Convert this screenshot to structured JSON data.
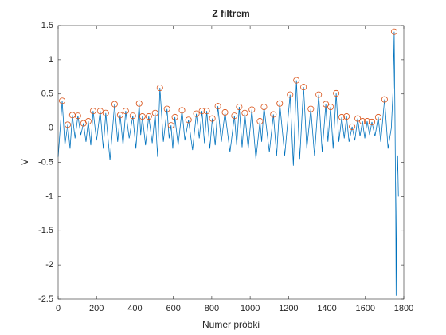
{
  "chart_data": {
    "type": "line",
    "title": "Z filtrem",
    "xlabel": "Numer próbki",
    "ylabel": "V",
    "x": [
      0,
      21,
      35,
      50,
      62,
      74,
      88,
      103,
      118,
      132,
      145,
      157,
      170,
      182,
      200,
      219,
      235,
      248,
      270,
      294,
      310,
      323,
      338,
      352,
      370,
      389,
      405,
      422,
      430,
      439,
      455,
      472,
      490,
      505,
      518,
      530,
      548,
      567,
      578,
      588,
      597,
      608,
      625,
      645,
      660,
      679,
      700,
      720,
      735,
      749,
      762,
      774,
      790,
      803,
      818,
      832,
      850,
      869,
      895,
      918,
      930,
      943,
      958,
      972,
      990,
      1009,
      1030,
      1051,
      1060,
      1072,
      1100,
      1121,
      1138,
      1154,
      1180,
      1208,
      1225,
      1241,
      1258,
      1278,
      1295,
      1316,
      1335,
      1357,
      1375,
      1394,
      1405,
      1419,
      1432,
      1448,
      1462,
      1477,
      1490,
      1502,
      1515,
      1531,
      1545,
      1560,
      1572,
      1585,
      1597,
      1609,
      1622,
      1634,
      1650,
      1667,
      1680,
      1700,
      1718,
      1735,
      1745,
      1750,
      1754,
      1758,
      1760,
      1764,
      1768,
      1772
    ],
    "values": [
      -0.42,
      0.4,
      -0.25,
      0.05,
      -0.3,
      0.19,
      -0.15,
      0.18,
      -0.1,
      0.07,
      -0.2,
      0.1,
      -0.25,
      0.25,
      -0.18,
      0.25,
      -0.3,
      0.22,
      -0.47,
      0.35,
      -0.2,
      0.19,
      -0.25,
      0.25,
      -0.15,
      0.18,
      -0.3,
      0.36,
      -0.1,
      0.17,
      -0.25,
      0.17,
      -0.22,
      0.22,
      -0.42,
      0.59,
      -0.2,
      0.28,
      -0.15,
      0.04,
      -0.3,
      0.16,
      -0.25,
      0.26,
      -0.18,
      0.12,
      -0.32,
      0.21,
      -0.15,
      0.25,
      -0.22,
      0.25,
      -0.3,
      0.14,
      -0.25,
      0.32,
      -0.2,
      0.23,
      -0.35,
      0.18,
      -0.25,
      0.31,
      -0.28,
      0.22,
      -0.3,
      0.27,
      -0.45,
      0.1,
      -0.2,
      0.31,
      -0.35,
      0.2,
      -0.4,
      0.36,
      -0.4,
      0.49,
      -0.55,
      0.7,
      -0.45,
      0.6,
      -0.3,
      0.28,
      -0.4,
      0.49,
      -0.35,
      0.35,
      -0.2,
      0.31,
      -0.3,
      0.51,
      -0.2,
      0.16,
      -0.15,
      0.17,
      -0.2,
      0.02,
      -0.18,
      0.14,
      -0.12,
      0.1,
      -0.15,
      0.1,
      -0.1,
      0.09,
      -0.12,
      0.16,
      -0.2,
      0.42,
      -0.3,
      0.0,
      0.6,
      1.41,
      0.2,
      -1.2,
      -2.45,
      -0.8,
      -0.4,
      -1.0
    ],
    "color": "#0072bd",
    "markers": {
      "color": "#d95319",
      "x": [
        21,
        50,
        74,
        103,
        132,
        157,
        182,
        219,
        248,
        294,
        323,
        352,
        389,
        422,
        439,
        472,
        505,
        530,
        567,
        588,
        608,
        645,
        679,
        720,
        749,
        774,
        803,
        832,
        869,
        918,
        943,
        972,
        1009,
        1051,
        1072,
        1121,
        1154,
        1208,
        1241,
        1278,
        1316,
        1357,
        1394,
        1419,
        1448,
        1477,
        1502,
        1531,
        1560,
        1585,
        1609,
        1634,
        1667,
        1700,
        1750
      ],
      "values": [
        0.4,
        0.05,
        0.19,
        0.18,
        0.07,
        0.1,
        0.25,
        0.25,
        0.22,
        0.35,
        0.19,
        0.25,
        0.18,
        0.36,
        0.17,
        0.17,
        0.22,
        0.59,
        0.28,
        0.04,
        0.16,
        0.26,
        0.12,
        0.21,
        0.25,
        0.25,
        0.14,
        0.32,
        0.23,
        0.18,
        0.31,
        0.22,
        0.27,
        0.1,
        0.31,
        0.2,
        0.36,
        0.49,
        0.7,
        0.6,
        0.28,
        0.49,
        0.35,
        0.31,
        0.51,
        0.16,
        0.17,
        0.02,
        0.14,
        0.1,
        0.1,
        0.09,
        0.16,
        0.42,
        1.41
      ]
    },
    "xlim": [
      0,
      1800
    ],
    "xticks": [
      0,
      200,
      400,
      600,
      800,
      1000,
      1200,
      1400,
      1600,
      1800
    ],
    "ylim": [
      -2.5,
      1.5
    ],
    "yticks": [
      -2.5,
      -2,
      -1.5,
      -1,
      -0.5,
      0,
      0.5,
      1,
      1.5
    ],
    "grid": false
  }
}
